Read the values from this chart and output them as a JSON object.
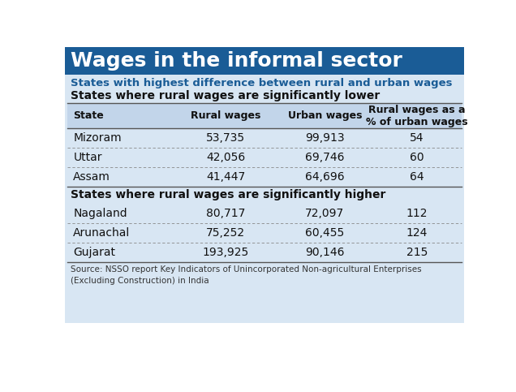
{
  "title": "Wages in the informal sector",
  "subtitle": "States with highest difference between rural and urban wages",
  "title_bg": "#1a5c96",
  "title_color": "#ffffff",
  "subtitle_color": "#1a5c96",
  "section1_header": "States where rural wages are significantly lower",
  "section2_header": "States where rural wages are significantly higher",
  "col_headers": [
    "State",
    "Rural wages",
    "Urban wages",
    "Rural wages as a\n% of urban wages"
  ],
  "lower_rows": [
    [
      "Mizoram",
      "53,735",
      "99,913",
      "54"
    ],
    [
      "Uttar",
      "42,056",
      "69,746",
      "60"
    ],
    [
      "Assam",
      "41,447",
      "64,696",
      "64"
    ]
  ],
  "higher_rows": [
    [
      "Nagaland",
      "80,717",
      "72,097",
      "112"
    ],
    [
      "Arunachal",
      "75,252",
      "60,455",
      "124"
    ],
    [
      "Gujarat",
      "193,925",
      "90,146",
      "215"
    ]
  ],
  "source_text": "Source: NSSO report Key Indicators of Unincorporated Non-agricultural Enterprises\n(Excluding Construction) in India",
  "table_bg": "#d8e6f3",
  "white_color": "#ffffff",
  "header_row_bg": "#c2d5ea",
  "dotted_color": "#888888",
  "dark_line_color": "#555555",
  "text_color": "#111111",
  "source_color": "#333333"
}
